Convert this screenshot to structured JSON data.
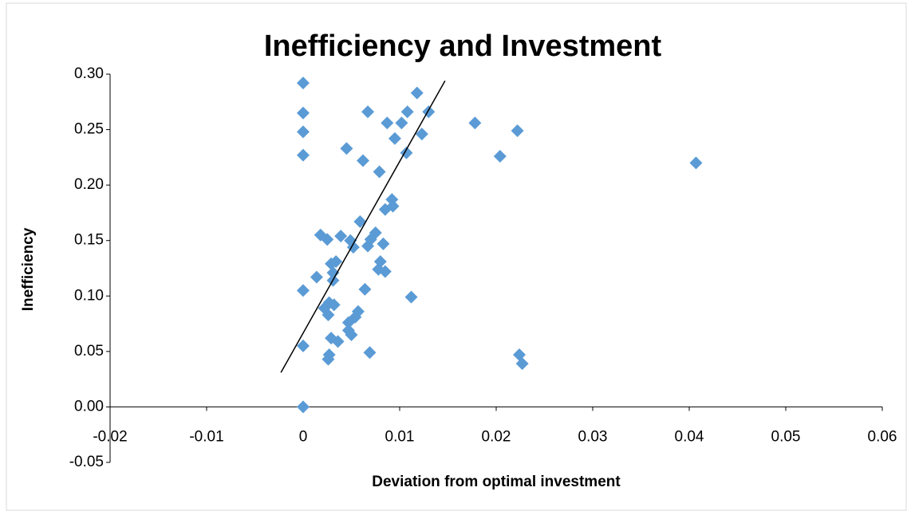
{
  "chart_data": {
    "type": "scatter",
    "title": "Inefficiency and Investment",
    "xlabel": "Deviation from optimal investment",
    "ylabel": "Inefficiency",
    "color": "#5b9bd5",
    "xlim": [
      -0.02,
      0.06
    ],
    "xticks": [
      {
        "value": -0.02,
        "label": "-0.02"
      },
      {
        "value": -0.01,
        "label": "-0.01"
      },
      0,
      {
        "value": 0.01,
        "label": "0.01"
      },
      {
        "value": 0.02,
        "label": "0.02"
      },
      {
        "value": 0.03,
        "label": "0.03"
      },
      {
        "value": 0.04,
        "label": "0.04"
      },
      {
        "value": 0.05,
        "label": "0.05"
      },
      {
        "value": 0.06,
        "label": "0.06"
      }
    ],
    "ylim": [
      -0.05,
      0.3
    ],
    "yticks": [
      {
        "value": -0.05,
        "label": "-0.05"
      },
      {
        "value": 0,
        "label": "0.00"
      },
      {
        "value": 0.05,
        "label": "0.05"
      },
      {
        "value": 0.1,
        "label": "0.10"
      },
      {
        "value": 0.15,
        "label": "0.15"
      },
      {
        "value": 0.2,
        "label": "0.20"
      },
      {
        "value": 0.25,
        "label": "0.25"
      },
      {
        "value": 0.3,
        "label": "0.30"
      }
    ],
    "grid": false,
    "x": [
      0,
      0,
      0,
      0,
      0,
      0,
      0,
      0.0118,
      0.0067,
      0.0108,
      0.013,
      0.0087,
      0.0102,
      0.0178,
      0.0222,
      0.0095,
      0.0123,
      0.0045,
      0.0107,
      0.0204,
      0.0062,
      0.0079,
      0.0407,
      0.0092,
      0.0093,
      0.0085,
      0.0059,
      0.0018,
      0.0025,
      0.0039,
      0.0049,
      0.0052,
      0.0075,
      0.007,
      0.0067,
      0.0083,
      0.008,
      0.0029,
      0.0034,
      0.0031,
      0.0078,
      0.0085,
      0.0031,
      0.0014,
      0.0064,
      0.0112,
      0.0027,
      0.0032,
      0.0022,
      0.0026,
      0.0057,
      0.0054,
      0.0047,
      0.0047,
      0.005,
      0.0029,
      0.0036,
      0.0069,
      0.0027,
      0.0026,
      0.0224,
      0.0227
    ],
    "values": [
      0.292,
      0.265,
      0.248,
      0.227,
      0.105,
      0.055,
      0,
      0.283,
      0.266,
      0.266,
      0.266,
      0.256,
      0.256,
      0.256,
      0.249,
      0.242,
      0.246,
      0.233,
      0.229,
      0.226,
      0.222,
      0.212,
      0.22,
      0.187,
      0.181,
      0.178,
      0.167,
      0.155,
      0.151,
      0.154,
      0.15,
      0.144,
      0.157,
      0.151,
      0.145,
      0.147,
      0.131,
      0.129,
      0.131,
      0.121,
      0.124,
      0.122,
      0.114,
      0.117,
      0.106,
      0.099,
      0.094,
      0.092,
      0.089,
      0.083,
      0.086,
      0.081,
      0.076,
      0.069,
      0.065,
      0.062,
      0.059,
      0.049,
      0.047,
      0.043,
      0.047,
      0.039
    ],
    "trendline": {
      "x": [
        -0.0023,
        0.0147
      ],
      "values": [
        0.031,
        0.294
      ],
      "color": "#000000"
    }
  }
}
